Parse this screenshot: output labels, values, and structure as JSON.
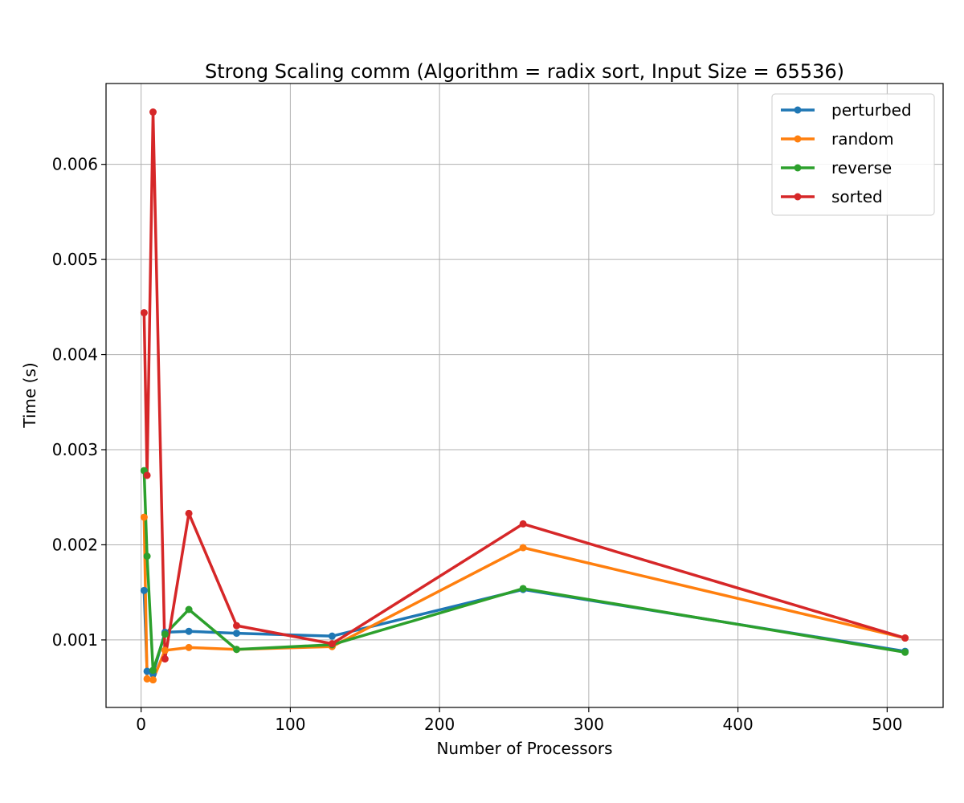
{
  "chart_data": {
    "type": "line",
    "title": "Strong Scaling comm (Algorithm = radix sort, Input Size = 65536)",
    "xlabel": "Number of Processors",
    "ylabel": "Time (s)",
    "xlim": [
      -23.5,
      537.5
    ],
    "ylim": [
      0.00029,
      0.00685
    ],
    "xticks": [
      0,
      100,
      200,
      300,
      400,
      500
    ],
    "yticks": [
      0.001,
      0.002,
      0.003,
      0.004,
      0.005,
      0.006
    ],
    "grid": true,
    "legend_position": "top-right",
    "x": [
      2,
      4,
      8,
      16,
      32,
      64,
      128,
      256,
      512
    ],
    "series": [
      {
        "name": "perturbed",
        "color": "#1f77b4",
        "values": [
          0.00152,
          0.00067,
          0.00064,
          0.00108,
          0.00109,
          0.00107,
          0.00104,
          0.00153,
          0.00088
        ]
      },
      {
        "name": "random",
        "color": "#ff7f0e",
        "values": [
          0.00229,
          0.00059,
          0.00058,
          0.00089,
          0.00092,
          0.0009,
          0.00093,
          0.00197,
          0.00102
        ]
      },
      {
        "name": "reverse",
        "color": "#2ca02c",
        "values": [
          0.00278,
          0.00188,
          0.00068,
          0.00106,
          0.00132,
          0.0009,
          0.00095,
          0.00154,
          0.00087
        ]
      },
      {
        "name": "sorted",
        "color": "#d62728",
        "values": [
          0.00444,
          0.00273,
          0.00655,
          0.0008,
          0.00233,
          0.00115,
          0.00096,
          0.00222,
          0.00102
        ]
      }
    ]
  }
}
